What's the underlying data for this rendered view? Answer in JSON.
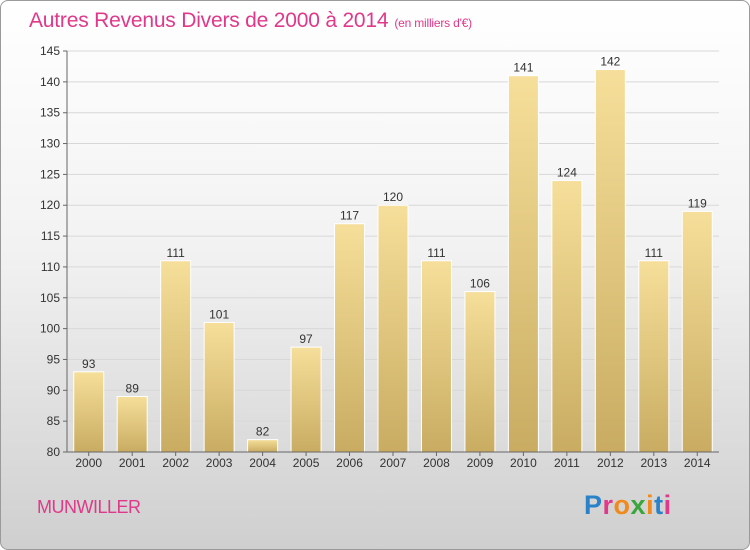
{
  "title": "Autres Revenus Divers de 2000 à 2014",
  "subtitle": "(en milliers d'€)",
  "city": "MUNWILLER",
  "logo": {
    "text": "Proxiti",
    "colors": [
      "#2a82c8",
      "#e0388a",
      "#f08a1c",
      "#3aa53a",
      "#f08a1c",
      "#2a82c8",
      "#e0388a"
    ]
  },
  "colors": {
    "title": "#e0388a",
    "bar_top": "#f6df9a",
    "bar_bottom": "#c9ac62",
    "axis": "#666666",
    "grid": "#d8d8d8"
  },
  "chart_data": {
    "type": "bar",
    "categories": [
      "2000",
      "2001",
      "2002",
      "2003",
      "2004",
      "2005",
      "2006",
      "2007",
      "2008",
      "2009",
      "2010",
      "2011",
      "2012",
      "2013",
      "2014"
    ],
    "values": [
      93,
      89,
      111,
      101,
      82,
      97,
      117,
      120,
      111,
      106,
      141,
      124,
      142,
      111,
      119
    ],
    "title": "Autres Revenus Divers de 2000 à 2014",
    "xlabel": "",
    "ylabel": "",
    "ylim": [
      80,
      145
    ],
    "yticks": [
      80,
      85,
      90,
      95,
      100,
      105,
      110,
      115,
      120,
      125,
      130,
      135,
      140,
      145
    ],
    "grid": true,
    "legend": "none"
  }
}
